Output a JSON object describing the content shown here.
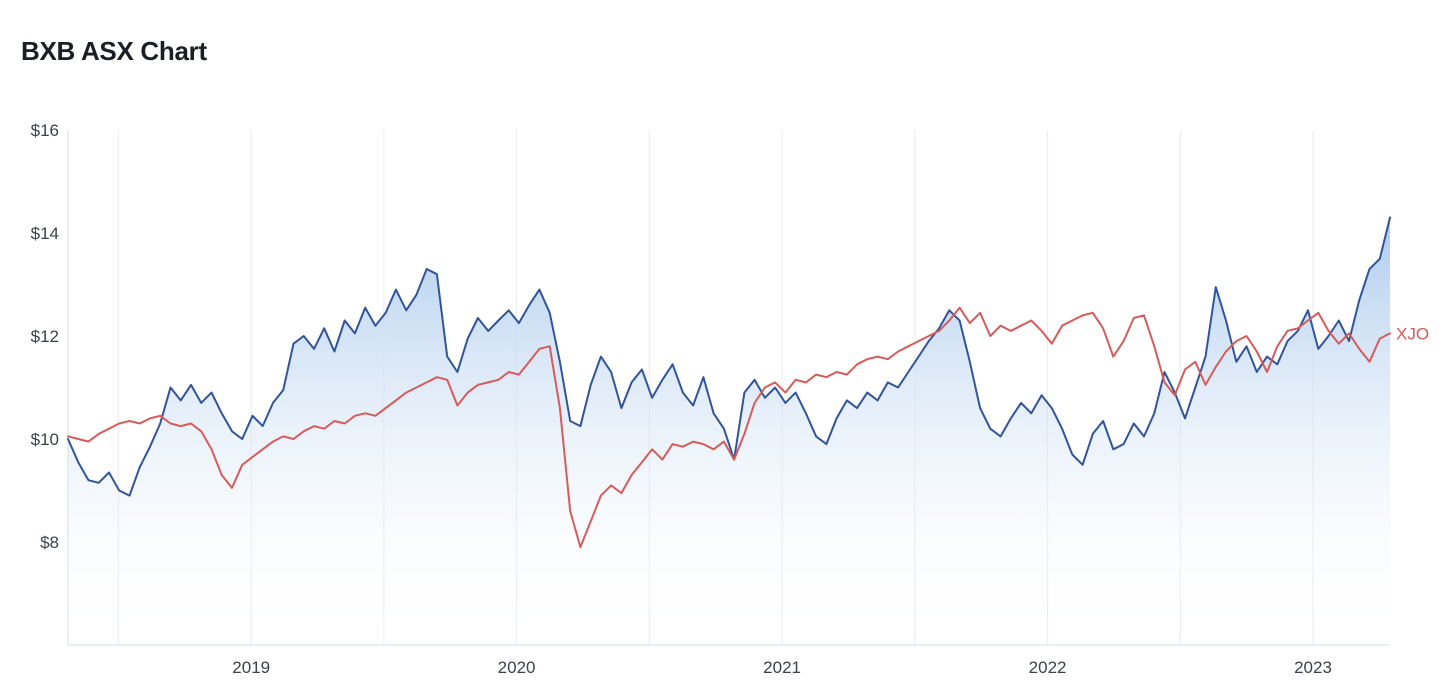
{
  "header": {
    "title": "BXB ASX Chart"
  },
  "chart_data": {
    "type": "line",
    "title": "BXB ASX Chart",
    "description_of_view": "BXB share price (blue area series) vs XJO index (red line), mid-2018 to mid-2023",
    "x_range": [
      2018.31,
      2023.29
    ],
    "x_axis": {
      "gridline_interval_years": 0.5,
      "ticks": [
        {
          "value": 2019,
          "label": "2019"
        },
        {
          "value": 2020,
          "label": "2020"
        },
        {
          "value": 2021,
          "label": "2021"
        },
        {
          "value": 2022,
          "label": "2022"
        },
        {
          "value": 2023,
          "label": "2023"
        }
      ]
    },
    "y_axis": {
      "min": 6,
      "max": 16,
      "ticks": [
        {
          "value": 16,
          "label": "$16"
        },
        {
          "value": 14,
          "label": "$14"
        },
        {
          "value": 12,
          "label": "$12"
        },
        {
          "value": 10,
          "label": "$10"
        },
        {
          "value": 8,
          "label": "$8"
        }
      ]
    },
    "grid": "vertical-only",
    "legend_position": "line-end-label",
    "colors": {
      "grid": "#e8ebf1",
      "axis": "#d7dce3",
      "label": "#3c414a"
    },
    "series": [
      {
        "name": "BXB",
        "type": "area",
        "color": "#31549B",
        "fill_top": "rgba(168,200,236,0.95)",
        "fill_bottom": "rgba(255,255,255,0)",
        "values": [
          10.0,
          9.55,
          9.2,
          9.15,
          9.35,
          9.0,
          8.9,
          9.45,
          9.85,
          10.3,
          11.0,
          10.75,
          11.05,
          10.7,
          10.9,
          10.5,
          10.15,
          10.0,
          10.45,
          10.25,
          10.7,
          10.95,
          11.85,
          12.0,
          11.75,
          12.15,
          11.7,
          12.3,
          12.05,
          12.55,
          12.2,
          12.45,
          12.9,
          12.5,
          12.8,
          13.3,
          13.2,
          11.6,
          11.3,
          11.95,
          12.35,
          12.1,
          12.3,
          12.5,
          12.25,
          12.6,
          12.9,
          12.45,
          11.5,
          10.35,
          10.25,
          11.05,
          11.6,
          11.3,
          10.6,
          11.1,
          11.35,
          10.8,
          11.15,
          11.45,
          10.9,
          10.65,
          11.2,
          10.5,
          10.2,
          9.6,
          10.9,
          11.15,
          10.8,
          11.0,
          10.7,
          10.9,
          10.5,
          10.05,
          9.9,
          10.4,
          10.75,
          10.6,
          10.9,
          10.75,
          11.1,
          11.0,
          11.3,
          11.6,
          11.9,
          12.15,
          12.5,
          12.3,
          11.5,
          10.6,
          10.2,
          10.05,
          10.4,
          10.7,
          10.5,
          10.85,
          10.6,
          10.2,
          9.7,
          9.5,
          10.1,
          10.35,
          9.8,
          9.9,
          10.3,
          10.05,
          10.5,
          11.3,
          10.9,
          10.4,
          11.0,
          11.6,
          12.95,
          12.3,
          11.5,
          11.8,
          11.3,
          11.6,
          11.45,
          11.9,
          12.1,
          12.5,
          11.75,
          12.0,
          12.3,
          11.9,
          12.7,
          13.3,
          13.5,
          14.3
        ]
      },
      {
        "name": "XJO",
        "type": "line",
        "color": "#D45D5B",
        "end_label": "XJO",
        "values": [
          10.05,
          10.0,
          9.95,
          10.1,
          10.2,
          10.3,
          10.35,
          10.3,
          10.4,
          10.45,
          10.3,
          10.25,
          10.3,
          10.15,
          9.8,
          9.3,
          9.05,
          9.5,
          9.65,
          9.8,
          9.95,
          10.05,
          10.0,
          10.15,
          10.25,
          10.2,
          10.35,
          10.3,
          10.45,
          10.5,
          10.45,
          10.6,
          10.75,
          10.9,
          11.0,
          11.1,
          11.2,
          11.15,
          10.65,
          10.9,
          11.05,
          11.1,
          11.15,
          11.3,
          11.25,
          11.5,
          11.75,
          11.8,
          10.6,
          8.6,
          7.9,
          8.4,
          8.9,
          9.1,
          8.95,
          9.3,
          9.55,
          9.8,
          9.6,
          9.9,
          9.85,
          9.95,
          9.9,
          9.8,
          9.95,
          9.6,
          10.1,
          10.7,
          11.0,
          11.1,
          10.9,
          11.15,
          11.1,
          11.25,
          11.2,
          11.3,
          11.25,
          11.45,
          11.55,
          11.6,
          11.55,
          11.7,
          11.8,
          11.9,
          12.0,
          12.1,
          12.3,
          12.55,
          12.25,
          12.45,
          12.0,
          12.2,
          12.1,
          12.2,
          12.3,
          12.1,
          11.85,
          12.2,
          12.3,
          12.4,
          12.45,
          12.15,
          11.6,
          11.9,
          12.35,
          12.4,
          11.8,
          11.1,
          10.85,
          11.35,
          11.5,
          11.05,
          11.4,
          11.7,
          11.9,
          12.0,
          11.7,
          11.3,
          11.8,
          12.1,
          12.15,
          12.3,
          12.45,
          12.1,
          11.85,
          12.05,
          11.75,
          11.5,
          11.95,
          12.05
        ]
      }
    ]
  }
}
